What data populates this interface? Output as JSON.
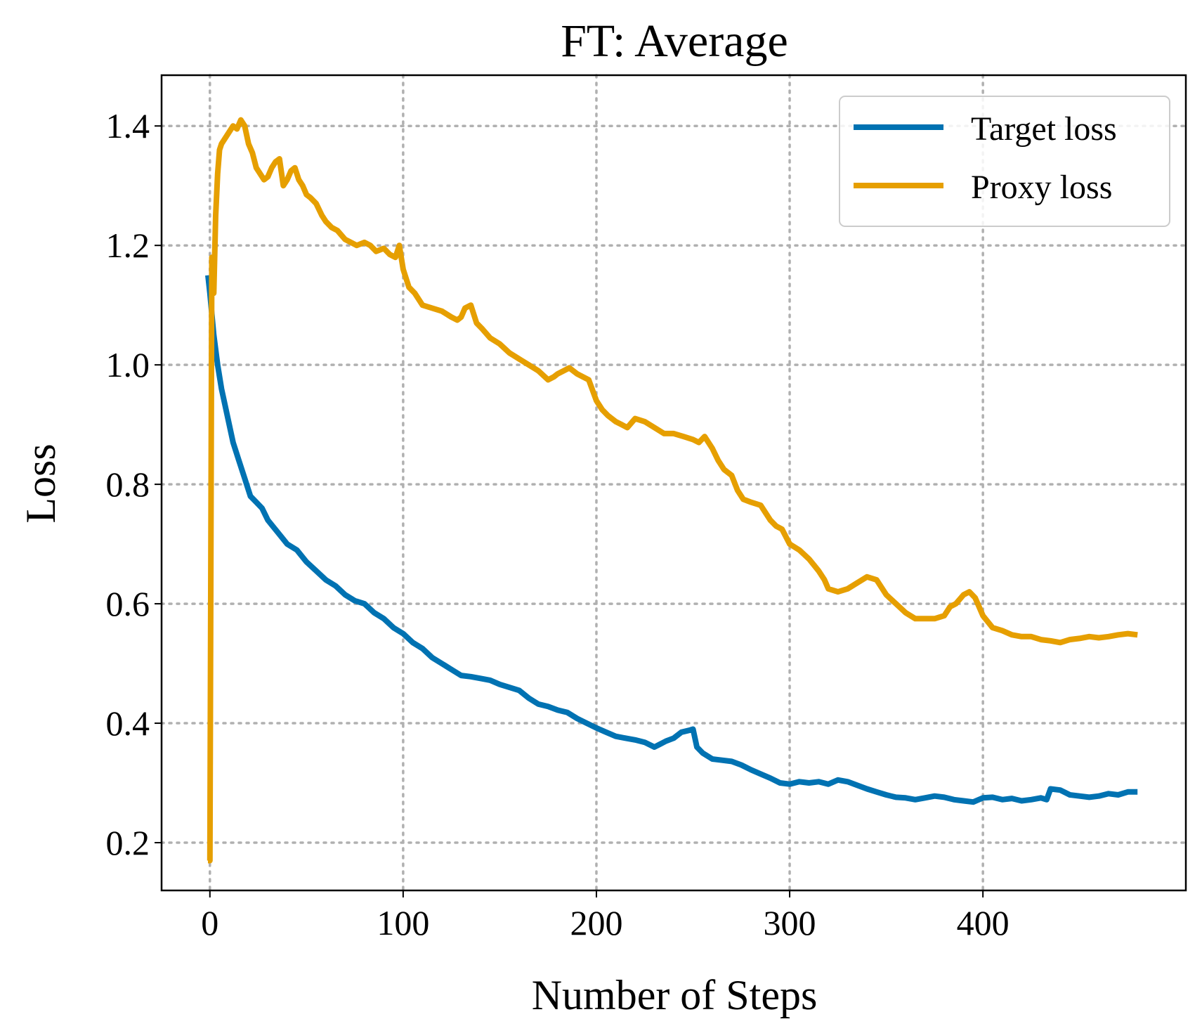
{
  "chart_data": {
    "type": "line",
    "title": "FT: Average",
    "xlabel": "Number of Steps",
    "ylabel": "Loss",
    "xlim": [
      -25,
      505
    ],
    "ylim": [
      0.12,
      1.485
    ],
    "xticks": [
      0,
      100,
      200,
      300,
      400
    ],
    "xtick_labels": [
      "0",
      "100",
      "200",
      "300",
      "400"
    ],
    "yticks": [
      0.2,
      0.4,
      0.6,
      0.8,
      1.0,
      1.2,
      1.4
    ],
    "ytick_labels": [
      "0.2",
      "0.4",
      "0.6",
      "0.8",
      "1.0",
      "1.2",
      "1.4"
    ],
    "grid": true,
    "legend_position": "top-right",
    "series": [
      {
        "name": "Target loss",
        "color": "#0072b2",
        "x": [
          -1,
          0,
          2,
          4,
          6,
          8,
          10,
          12,
          15,
          18,
          21,
          24,
          27,
          30,
          35,
          40,
          45,
          50,
          55,
          60,
          65,
          70,
          75,
          80,
          85,
          90,
          95,
          100,
          105,
          110,
          115,
          120,
          125,
          130,
          135,
          140,
          145,
          150,
          155,
          160,
          165,
          170,
          175,
          180,
          185,
          190,
          195,
          200,
          205,
          210,
          215,
          220,
          225,
          230,
          233,
          236,
          240,
          244,
          248,
          250,
          252,
          255,
          260,
          265,
          270,
          275,
          280,
          285,
          290,
          295,
          300,
          305,
          310,
          315,
          320,
          325,
          330,
          335,
          340,
          345,
          350,
          355,
          360,
          365,
          370,
          375,
          380,
          385,
          390,
          395,
          400,
          405,
          410,
          415,
          420,
          425,
          430,
          433,
          435,
          440,
          445,
          450,
          455,
          460,
          465,
          470,
          475,
          480
        ],
        "y": [
          1.15,
          1.12,
          1.05,
          1.0,
          0.96,
          0.93,
          0.9,
          0.87,
          0.84,
          0.81,
          0.78,
          0.77,
          0.76,
          0.74,
          0.72,
          0.7,
          0.69,
          0.67,
          0.655,
          0.64,
          0.63,
          0.615,
          0.605,
          0.6,
          0.585,
          0.575,
          0.56,
          0.55,
          0.535,
          0.525,
          0.51,
          0.5,
          0.49,
          0.48,
          0.478,
          0.475,
          0.472,
          0.465,
          0.46,
          0.455,
          0.442,
          0.432,
          0.428,
          0.422,
          0.418,
          0.408,
          0.4,
          0.392,
          0.385,
          0.378,
          0.375,
          0.372,
          0.368,
          0.36,
          0.365,
          0.37,
          0.375,
          0.385,
          0.388,
          0.39,
          0.36,
          0.35,
          0.34,
          0.338,
          0.336,
          0.33,
          0.322,
          0.315,
          0.308,
          0.3,
          0.298,
          0.302,
          0.3,
          0.302,
          0.298,
          0.305,
          0.302,
          0.296,
          0.29,
          0.285,
          0.28,
          0.276,
          0.275,
          0.272,
          0.275,
          0.278,
          0.276,
          0.272,
          0.27,
          0.268,
          0.275,
          0.276,
          0.272,
          0.274,
          0.27,
          0.272,
          0.275,
          0.272,
          0.29,
          0.288,
          0.28,
          0.278,
          0.276,
          0.278,
          0.282,
          0.28,
          0.285,
          0.285
        ]
      },
      {
        "name": "Proxy loss",
        "color": "#e69f00",
        "x": [
          -1,
          0,
          1,
          2,
          3,
          4,
          5,
          6,
          8,
          10,
          12,
          14,
          16,
          18,
          20,
          22,
          24,
          26,
          28,
          30,
          32,
          34,
          36,
          38,
          40,
          42,
          44,
          46,
          48,
          50,
          52,
          55,
          58,
          60,
          63,
          66,
          70,
          73,
          76,
          80,
          83,
          86,
          90,
          93,
          96,
          98,
          100,
          103,
          106,
          110,
          115,
          120,
          125,
          128,
          130,
          132,
          135,
          138,
          141,
          145,
          150,
          155,
          160,
          165,
          170,
          175,
          178,
          180,
          183,
          186,
          190,
          193,
          196,
          200,
          203,
          206,
          210,
          213,
          216,
          220,
          225,
          230,
          235,
          240,
          245,
          250,
          253,
          256,
          260,
          263,
          266,
          270,
          273,
          276,
          280,
          285,
          290,
          293,
          296,
          300,
          305,
          310,
          315,
          318,
          320,
          325,
          330,
          335,
          340,
          345,
          350,
          355,
          360,
          365,
          370,
          375,
          380,
          383,
          386,
          390,
          393,
          396,
          400,
          405,
          410,
          415,
          420,
          425,
          430,
          435,
          440,
          445,
          450,
          455,
          460,
          465,
          470,
          475,
          480
        ],
        "y": [
          0.17,
          0.17,
          1.18,
          1.12,
          1.25,
          1.32,
          1.36,
          1.37,
          1.38,
          1.39,
          1.4,
          1.395,
          1.41,
          1.4,
          1.37,
          1.355,
          1.33,
          1.32,
          1.31,
          1.315,
          1.33,
          1.34,
          1.345,
          1.3,
          1.31,
          1.325,
          1.33,
          1.31,
          1.3,
          1.285,
          1.28,
          1.27,
          1.25,
          1.24,
          1.23,
          1.225,
          1.21,
          1.205,
          1.2,
          1.205,
          1.2,
          1.19,
          1.195,
          1.185,
          1.18,
          1.2,
          1.16,
          1.13,
          1.12,
          1.1,
          1.095,
          1.09,
          1.08,
          1.075,
          1.08,
          1.095,
          1.1,
          1.07,
          1.06,
          1.045,
          1.035,
          1.02,
          1.01,
          1.0,
          0.99,
          0.975,
          0.98,
          0.985,
          0.99,
          0.995,
          0.985,
          0.98,
          0.975,
          0.94,
          0.925,
          0.915,
          0.905,
          0.9,
          0.895,
          0.91,
          0.905,
          0.895,
          0.885,
          0.885,
          0.88,
          0.875,
          0.87,
          0.88,
          0.86,
          0.84,
          0.825,
          0.815,
          0.79,
          0.775,
          0.77,
          0.765,
          0.74,
          0.73,
          0.725,
          0.7,
          0.69,
          0.675,
          0.655,
          0.64,
          0.625,
          0.62,
          0.625,
          0.635,
          0.645,
          0.64,
          0.615,
          0.6,
          0.585,
          0.575,
          0.575,
          0.575,
          0.58,
          0.595,
          0.6,
          0.615,
          0.62,
          0.61,
          0.58,
          0.56,
          0.555,
          0.548,
          0.545,
          0.545,
          0.54,
          0.538,
          0.535,
          0.54,
          0.542,
          0.545,
          0.543,
          0.545,
          0.548,
          0.55,
          0.548
        ]
      }
    ]
  }
}
